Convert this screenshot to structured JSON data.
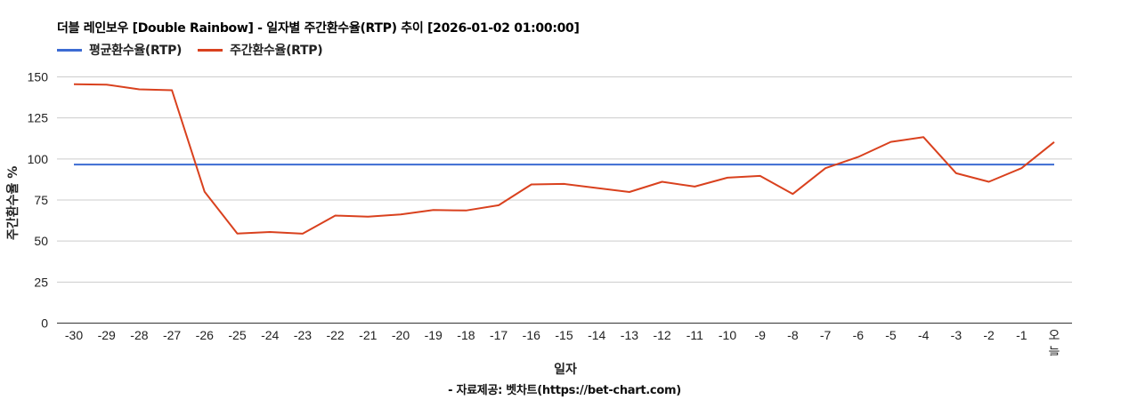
{
  "chart": {
    "title": "더블 레인보우 [Double Rainbow] - 일자별 주간환수율(RTP) 추이 [2026-01-02 01:00:00]",
    "xlabel": "일자",
    "ylabel": "주간환수율 %",
    "source": "- 자료제공: 벳차트(https://bet-chart.com)",
    "legend": [
      {
        "label": "평균환수율(RTP)",
        "color": "#3c6bd3"
      },
      {
        "label": "주간환수율(RTP)",
        "color": "#d9411e"
      }
    ]
  },
  "chart_data": {
    "type": "line",
    "title": "더블 레인보우 [Double Rainbow] - 일자별 주간환수율(RTP) 추이 [2026-01-02 01:00:00]",
    "xlabel": "일자",
    "ylabel": "주간환수율 %",
    "ylim": [
      0,
      150
    ],
    "yticks": [
      0,
      25,
      50,
      75,
      100,
      125,
      150
    ],
    "grid": true,
    "legend_position": "top-left",
    "categories": [
      "-30",
      "-29",
      "-28",
      "-27",
      "-26",
      "-25",
      "-24",
      "-23",
      "-22",
      "-21",
      "-20",
      "-19",
      "-18",
      "-17",
      "-16",
      "-15",
      "-14",
      "-13",
      "-12",
      "-11",
      "-10",
      "-9",
      "-8",
      "-7",
      "-6",
      "-5",
      "-4",
      "-3",
      "-2",
      "-1",
      "오늘"
    ],
    "series": [
      {
        "name": "평균환수율(RTP)",
        "color": "#3c6bd3",
        "values": [
          96.6,
          96.6,
          96.6,
          96.6,
          96.6,
          96.6,
          96.6,
          96.6,
          96.6,
          96.6,
          96.6,
          96.6,
          96.6,
          96.6,
          96.6,
          96.6,
          96.6,
          96.6,
          96.6,
          96.6,
          96.6,
          96.6,
          96.6,
          96.6,
          96.6,
          96.6,
          96.6,
          96.6,
          96.6,
          96.6,
          96.6
        ]
      },
      {
        "name": "주간환수율(RTP)",
        "color": "#d9411e",
        "values": [
          145.5,
          145.3,
          142.4,
          141.9,
          80.0,
          54.6,
          55.5,
          54.5,
          65.5,
          64.8,
          66.2,
          68.9,
          68.6,
          71.8,
          84.5,
          84.8,
          82.3,
          79.9,
          86.1,
          83.2,
          88.6,
          89.7,
          78.7,
          94.4,
          101.2,
          110.4,
          113.3,
          91.3,
          86.1,
          94.4,
          110.3
        ]
      }
    ],
    "source": "- 자료제공: 벳차트(https://bet-chart.com)"
  }
}
